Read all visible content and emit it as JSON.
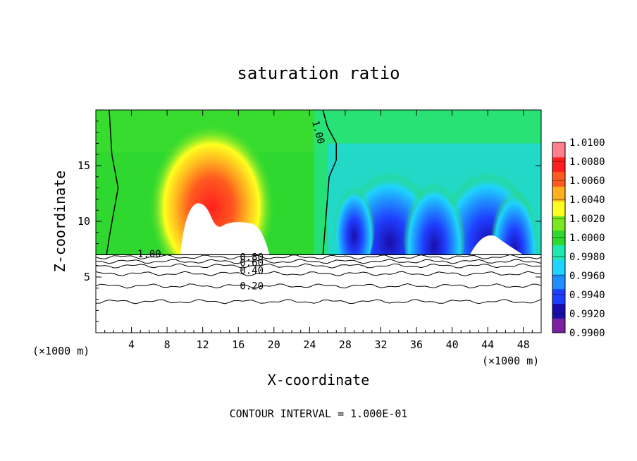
{
  "chart_data": {
    "type": "heatmap",
    "title": "saturation ratio",
    "xlabel": "X-coordinate",
    "ylabel": "Z-coordinate",
    "x_unit_label": "(×1000 m)",
    "footer": "CONTOUR INTERVAL = 1.000E-01",
    "xlim": [
      0,
      50
    ],
    "ylim": [
      0,
      20
    ],
    "x_ticks": [
      4,
      8,
      12,
      16,
      20,
      24,
      28,
      32,
      36,
      40,
      44,
      48
    ],
    "y_ticks": [
      5,
      10,
      15
    ],
    "grid": false,
    "colorbar": {
      "placement": "right",
      "min": 0.99,
      "max": 1.01,
      "tick_labels": [
        "1.0100",
        "1.0080",
        "1.0060",
        "1.0040",
        "1.0020",
        "1.0000",
        "0.9980",
        "0.9960",
        "0.9940",
        "0.9920",
        "0.9900"
      ],
      "colors": [
        "#7a1fa2",
        "#1a0dab",
        "#1f3fff",
        "#1f8fff",
        "#1fd4ff",
        "#1fe8b0",
        "#2fd82f",
        "#7ae81f",
        "#ffff1f",
        "#ffb01f",
        "#ff5a1f",
        "#ff1f1f",
        "#ff7f8f"
      ]
    },
    "contour_labels": [
      {
        "text": "1.00",
        "x": 25,
        "z": 18
      },
      {
        "text": "1.00",
        "x": 6,
        "z": 7.1
      },
      {
        "text": "0.80",
        "x": 17.5,
        "z": 6.8
      },
      {
        "text": "0.60",
        "x": 17.5,
        "z": 6.3
      },
      {
        "text": "0.40",
        "x": 17.5,
        "z": 5.6
      },
      {
        "text": "0.20",
        "x": 17.5,
        "z": 4.2
      }
    ],
    "contour_lines": [
      {
        "level": 0.2,
        "z": 4.2
      },
      {
        "level": 0.4,
        "z": 5.3
      },
      {
        "level": 0.6,
        "z": 6.0
      },
      {
        "level": 0.8,
        "z": 6.4
      },
      {
        "level": 0.9,
        "z": 6.8
      },
      {
        "level": 0.1,
        "z": 2.8
      }
    ],
    "field_base_z": 7.0,
    "hotspots": [
      {
        "x": 13,
        "z": 12,
        "value": 1.008
      },
      {
        "x": 44,
        "z": 10,
        "value": 0.9915
      },
      {
        "x": 33,
        "z": 10,
        "value": 0.993
      }
    ]
  }
}
